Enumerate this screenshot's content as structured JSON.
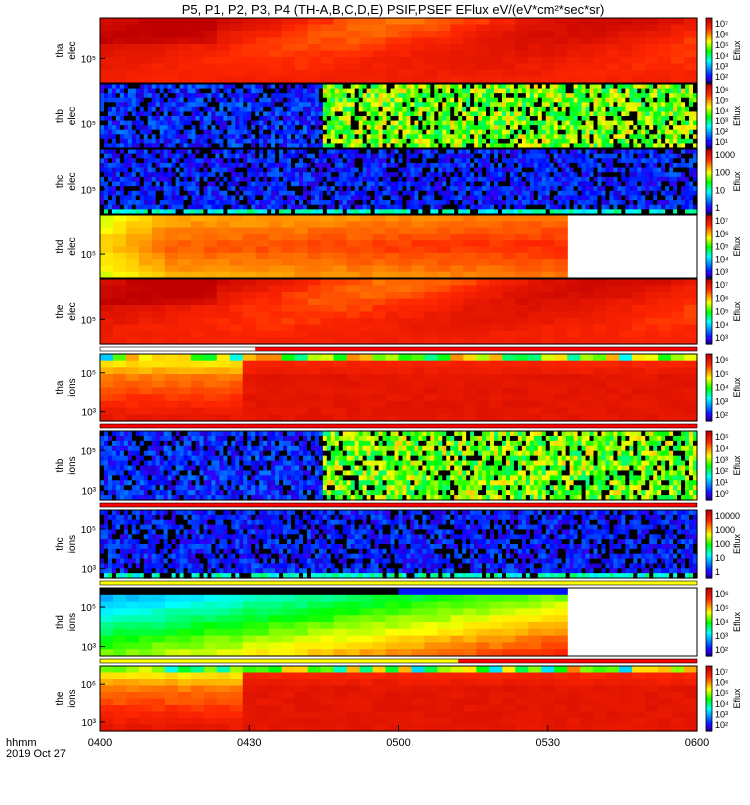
{
  "title": "P5, P1, P2, P3, P4 (TH-A,B,C,D,E) PSIF,PSEF EFlux eV/(eV*cm²*sec*sr)",
  "x_axis": {
    "ticks": [
      "0400",
      "0430",
      "0500",
      "0530",
      "0600"
    ],
    "label_line1": "hhmm",
    "label_line2": "2019 Oct 27"
  },
  "chart_data": {
    "type": "heatmap",
    "title": "P5, P1, P2, P3, P4 (TH-A,B,C,D,E) PSIF,PSEF EFlux eV/(eV*cm²*sec*sr)",
    "xlim": [
      "04:00",
      "06:00"
    ],
    "x_tick_labels": [
      "0400",
      "0430",
      "0500",
      "0530",
      "0600"
    ],
    "panels": [
      {
        "ylabel_line1": "tha",
        "ylabel_line2": "elec",
        "y_ticks": [
          "10⁵"
        ],
        "colorbar": {
          "label": "Eflux",
          "ticks": [
            "10⁷",
            "10⁶",
            "10⁵",
            "10⁴",
            "10³",
            "10²"
          ]
        },
        "level": "high",
        "colormap_range": [
          0.62,
          0.99
        ],
        "data_gap_after_fraction": null
      },
      {
        "ylabel_line1": "thb",
        "ylabel_line2": "elec",
        "y_ticks": [
          "10⁵"
        ],
        "colorbar": {
          "label": "Eflux",
          "ticks": [
            "10⁶",
            "10⁵",
            "10⁴",
            "10³",
            "10²",
            "10¹"
          ]
        },
        "level": "noisy",
        "regime_change_at": "04:45",
        "data_gap_after_fraction": null
      },
      {
        "ylabel_line1": "thc",
        "ylabel_line2": "elec",
        "y_ticks": [
          "10⁵"
        ],
        "colorbar": {
          "label": "Eflux",
          "ticks": [
            "1000",
            "100",
            "10",
            "1"
          ]
        },
        "level": "low-noisy",
        "data_gap_after_fraction": null
      },
      {
        "ylabel_line1": "thd",
        "ylabel_line2": "elec",
        "y_ticks": [
          "10⁵"
        ],
        "colorbar": {
          "label": "Eflux",
          "ticks": [
            "10⁷",
            "10⁶",
            "10⁵",
            "10⁴",
            "10³"
          ]
        },
        "level": "high-yellow",
        "data_end": "05:35"
      },
      {
        "ylabel_line1": "the",
        "ylabel_line2": "elec",
        "y_ticks": [
          "10⁵"
        ],
        "colorbar": {
          "label": "Eflux",
          "ticks": [
            "10⁷",
            "10⁶",
            "10⁵",
            "10⁴",
            "10³"
          ]
        },
        "level": "high"
      },
      {
        "ylabel_line1": "tha",
        "ylabel_line2": "ions",
        "y_ticks": [
          "10⁵",
          "10³"
        ],
        "colorbar": {
          "label": "Eflux",
          "ticks": [
            "10⁶",
            "10⁵",
            "10⁴",
            "10³",
            "10²"
          ]
        },
        "level": "ions-high"
      },
      {
        "ylabel_line1": "thb",
        "ylabel_line2": "ions",
        "y_ticks": [
          "10⁵",
          "10³"
        ],
        "colorbar": {
          "label": "Eflux",
          "ticks": [
            "10⁵",
            "10⁴",
            "10³",
            "10²",
            "10¹",
            "10⁰"
          ]
        },
        "level": "noisy",
        "regime_change_at": "04:45"
      },
      {
        "ylabel_line1": "thc",
        "ylabel_line2": "ions",
        "y_ticks": [
          "10⁵",
          "10³"
        ],
        "colorbar": {
          "label": "Eflux",
          "ticks": [
            "10000",
            "1000",
            "100",
            "10",
            "1"
          ]
        },
        "level": "low-noisy"
      },
      {
        "ylabel_line1": "thd",
        "ylabel_line2": "ions",
        "y_ticks": [
          "10⁵",
          "10³"
        ],
        "colorbar": {
          "label": "Eflux",
          "ticks": [
            "10⁶",
            "10⁵",
            "10⁴",
            "10³",
            "10²"
          ]
        },
        "level": "ions-green",
        "data_end": "05:35"
      },
      {
        "ylabel_line1": "the",
        "ylabel_line2": "ions",
        "y_ticks": [
          "10⁶",
          "10³"
        ],
        "colorbar": {
          "label": "Eflux",
          "ticks": [
            "10⁷",
            "10⁶",
            "10⁵",
            "10⁴",
            "10³",
            "10²"
          ]
        },
        "level": "ions-high"
      }
    ]
  }
}
